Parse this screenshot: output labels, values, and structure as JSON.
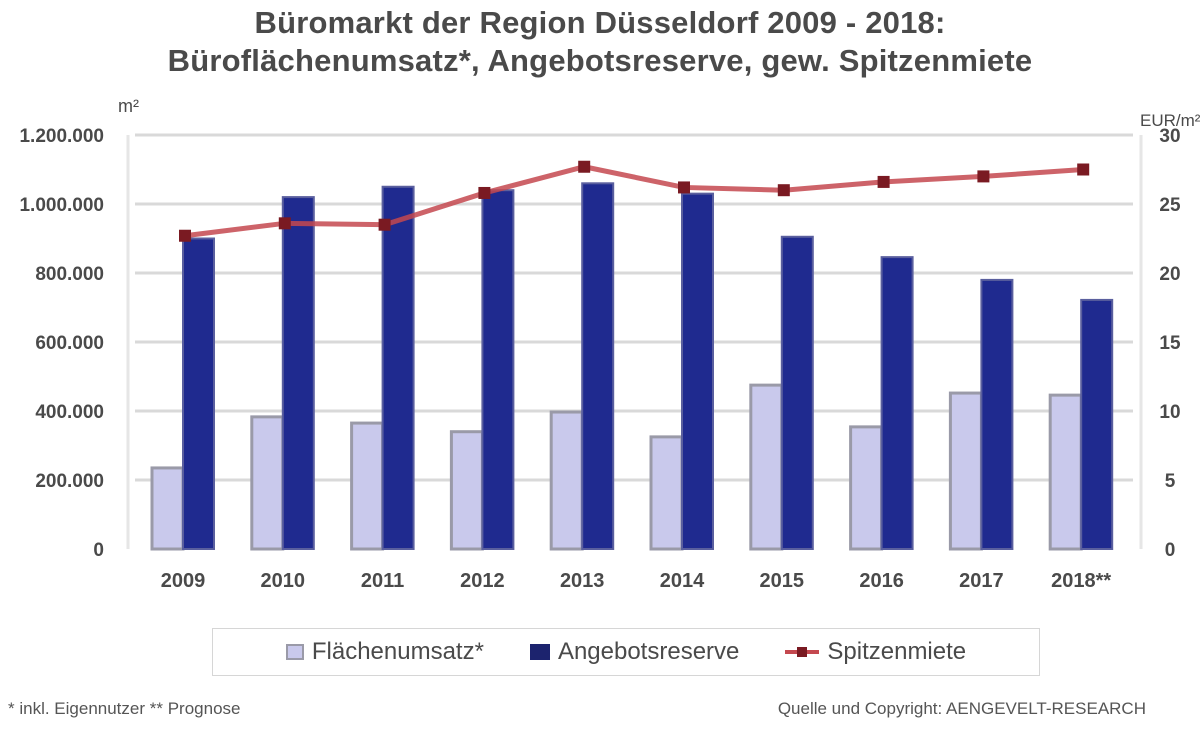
{
  "title": {
    "line1": "Büromarkt der Region Düsseldorf 2009 - 2018:",
    "line2": "Büroflächenumsatz*, Angebotsreserve, gew. Spitzenmiete"
  },
  "axes": {
    "left_unit": "m²",
    "right_unit": "EUR/m²",
    "left_ticks": [
      "0",
      "200.000",
      "400.000",
      "600.000",
      "800.000",
      "1.000.000",
      "1.200.000"
    ],
    "left_tick_values": [
      0,
      200000,
      400000,
      600000,
      800000,
      1000000,
      1200000
    ],
    "right_ticks": [
      "0",
      "5",
      "10",
      "15",
      "20",
      "25",
      "30"
    ],
    "right_tick_values": [
      0,
      5,
      10,
      15,
      20,
      25,
      30
    ]
  },
  "legend": {
    "items": [
      {
        "label": "Flächenumsatz*",
        "kind": "bar-light"
      },
      {
        "label": "Angebotsreserve",
        "kind": "bar-dark"
      },
      {
        "label": "Spitzenmiete",
        "kind": "line"
      }
    ]
  },
  "footnote": "* inkl. Eigennutzer ** Prognose",
  "source": "Quelle und Copyright: AENGEVELT-RESEARCH",
  "colors": {
    "flaechenumsatz": "#c9c9ec",
    "flaechenumsatz_border": "#9a9aa8",
    "angebotsreserve": "#1f2a8f",
    "spitzenmiete_line": "#c4484f",
    "spitzenmiete_marker": "#7a1a22",
    "grid": "#d9d9d9",
    "text": "#4a4a4a"
  },
  "chart_data": {
    "type": "bar",
    "title": "Büromarkt der Region Düsseldorf 2009 - 2018: Büroflächenumsatz*, Angebotsreserve, gew. Spitzenmiete",
    "categories": [
      "2009",
      "2010",
      "2011",
      "2012",
      "2013",
      "2014",
      "2015",
      "2016",
      "2017",
      "2018**"
    ],
    "series": [
      {
        "name": "Flächenumsatz*",
        "type": "bar",
        "axis": "left",
        "values": [
          235000,
          383000,
          365000,
          340000,
          397000,
          325000,
          475000,
          354000,
          452000,
          446000
        ]
      },
      {
        "name": "Angebotsreserve",
        "type": "bar",
        "axis": "left",
        "values": [
          900000,
          1020000,
          1050000,
          1040000,
          1060000,
          1030000,
          905000,
          846000,
          780000,
          722000
        ]
      },
      {
        "name": "Spitzenmiete",
        "type": "line",
        "axis": "right",
        "values": [
          22.7,
          23.6,
          23.5,
          25.8,
          27.7,
          26.2,
          26.0,
          26.6,
          27.0,
          27.5
        ]
      }
    ],
    "xlabel": "",
    "ylabel": "m²",
    "ylabel_right": "EUR/m²",
    "ylim": [
      0,
      1200000
    ],
    "ylim_right": [
      0,
      30
    ],
    "grid": true,
    "legend_position": "bottom"
  }
}
